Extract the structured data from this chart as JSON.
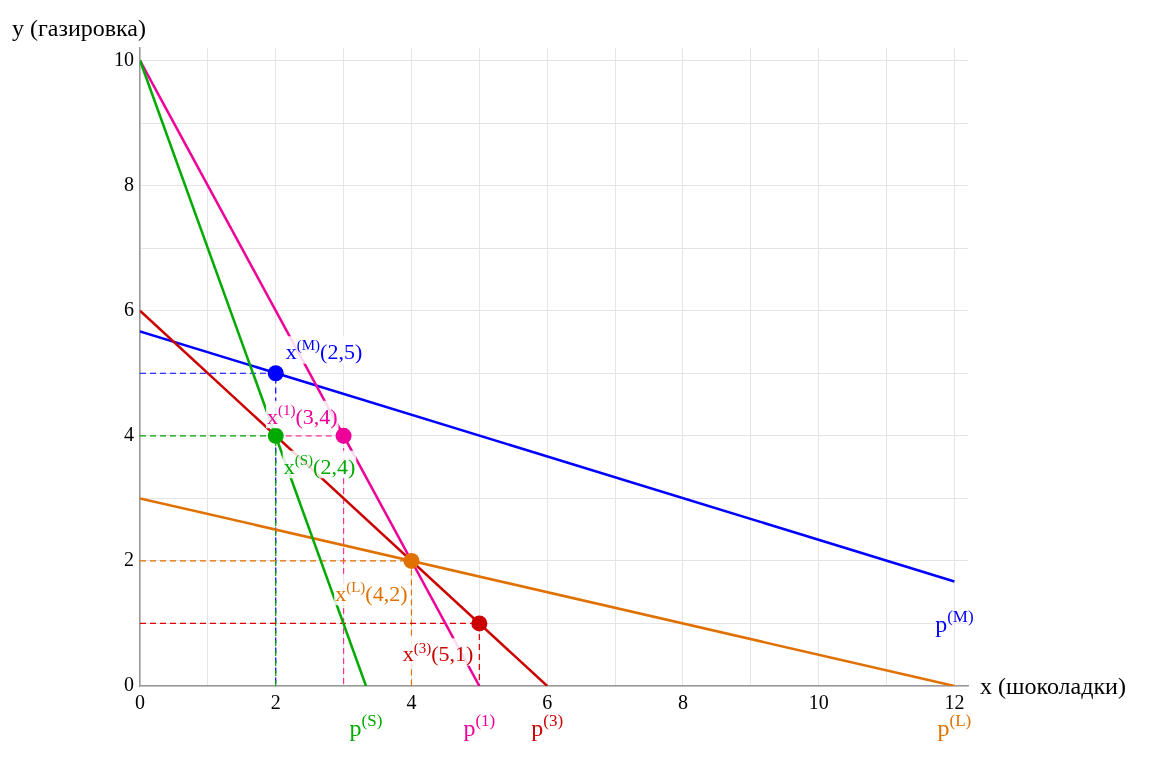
{
  "chart_data": {
    "type": "line",
    "xlabel": "x (шоколадки)",
    "ylabel": "y (газировка)",
    "xlim": [
      0,
      12.2
    ],
    "ylim": [
      0,
      10.2
    ],
    "xticks": [
      0,
      {
        "value": 1,
        "label": null
      },
      2,
      {
        "value": 3,
        "label": null
      },
      4,
      {
        "value": 5,
        "label": null
      },
      6,
      {
        "value": 7,
        "label": null
      },
      8,
      {
        "value": 9,
        "label": null
      },
      10,
      {
        "value": 11,
        "label": null
      },
      12
    ],
    "yticks": [
      0,
      {
        "value": 1,
        "label": null
      },
      2,
      {
        "value": 3,
        "label": null
      },
      4,
      {
        "value": 5,
        "label": null
      },
      6,
      {
        "value": 7,
        "label": null
      },
      8,
      {
        "value": 9,
        "label": null
      },
      10
    ],
    "grid": true,
    "series": [
      {
        "color": "#ff3399",
        "line_style": "dashed",
        "marker": "none",
        "x": [
          2,
          3,
          3
        ],
        "values": [
          4,
          4,
          0
        ]
      },
      {
        "color": "#0000ff",
        "line_style": "dashed",
        "marker": "none",
        "x": [
          0,
          2,
          2
        ],
        "values": [
          5,
          5,
          0
        ]
      },
      {
        "color": "#00a000",
        "line_style": "dashed",
        "marker": "none",
        "x": [
          0,
          2,
          2
        ],
        "values": [
          4,
          4,
          0
        ]
      },
      {
        "color": "#e07000",
        "line_style": "dashed",
        "marker": "none",
        "x": [
          0,
          4,
          4
        ],
        "values": [
          2,
          2,
          0
        ]
      },
      {
        "color": "#dd0000",
        "line_style": "dashed",
        "marker": "none",
        "x": [
          0,
          5,
          5
        ],
        "values": [
          1,
          1,
          0
        ]
      },
      {
        "name": "p$^{(M)}$",
        "color": "#0000ff",
        "line_style": "solid",
        "marker": "none",
        "x": [
          0,
          12
        ],
        "values": [
          5.67,
          1.67
        ]
      },
      {
        "name": "p$^{(L)}$",
        "color": "#e07000",
        "line_style": "solid",
        "marker": "none",
        "x": [
          0,
          12
        ],
        "values": [
          3,
          0
        ]
      },
      {
        "name": "p$^{(3)}$",
        "color": "#cc0000",
        "line_style": "solid",
        "marker": "none",
        "x": [
          0,
          6
        ],
        "values": [
          6,
          0
        ]
      },
      {
        "name": "p$^{(1)}$",
        "color": "#ee0099",
        "line_style": "solid",
        "marker": "none",
        "x": [
          0,
          5
        ],
        "values": [
          10,
          0
        ]
      },
      {
        "name": "p$^{(S)}$",
        "color": "#00aa00",
        "line_style": "solid",
        "marker": "none",
        "x": [
          0,
          3.33
        ],
        "values": [
          10,
          0
        ]
      },
      {
        "type": "scatter",
        "marker": "circle",
        "x": [
          2,
          3,
          2,
          4,
          5
        ],
        "values": [
          5,
          4,
          4,
          2,
          1
        ],
        "colors": [
          "#0000ff",
          "#ee0099",
          "#00aa00",
          "#e07000",
          "#cc0000"
        ]
      }
    ],
    "annotations": [
      {
        "text": "x$^{(M)}$(2,5)",
        "x": 2,
        "y": 5
      },
      {
        "text": "x$^{(1)}$(3,4)",
        "x": 3,
        "y": 4
      },
      {
        "text": "x$^{(S)}$(2,4)",
        "x": 2,
        "y": 4
      },
      {
        "text": "x$^{(L)}$(4,2)",
        "x": 4,
        "y": 2
      },
      {
        "text": "x$^{(3)}$(5,1)",
        "x": 5,
        "y": 1
      }
    ]
  }
}
